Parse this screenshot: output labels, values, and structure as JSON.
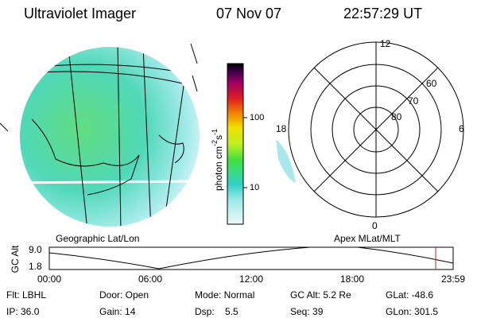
{
  "header": {
    "title": "Ultraviolet Imager",
    "date": "07 Nov 07",
    "time": "22:57:29 UT"
  },
  "colorbar": {
    "label": "photon cm",
    "exp1": "-2",
    "unit2": "s",
    "exp2": "-1",
    "ticks": [
      "100",
      "10"
    ]
  },
  "polar": {
    "mlt_labels": [
      "12",
      "18",
      "6",
      "0"
    ],
    "lat_labels": [
      "60",
      "70",
      "80"
    ]
  },
  "panels": {
    "left_label": "Geographic Lat/Lon",
    "right_label": "Apex MLat/MLT"
  },
  "timeline": {
    "axis_label": "GC Alt",
    "y_labels": [
      "9.0",
      "1.8"
    ],
    "x_labels": [
      "00:00",
      "06:00",
      "12:00",
      "18:00",
      "23:59"
    ]
  },
  "footer": {
    "rows": [
      [
        "Flt: LBHL",
        "Door: Open",
        "Mode: Normal",
        "GC Alt: 5.2 Re",
        "GLat: -48.6"
      ],
      [
        "IP: 36.0",
        "Gain: 14",
        "Dsp:    5.5",
        "Seq: 39",
        "GLon: 301.5"
      ]
    ]
  }
}
